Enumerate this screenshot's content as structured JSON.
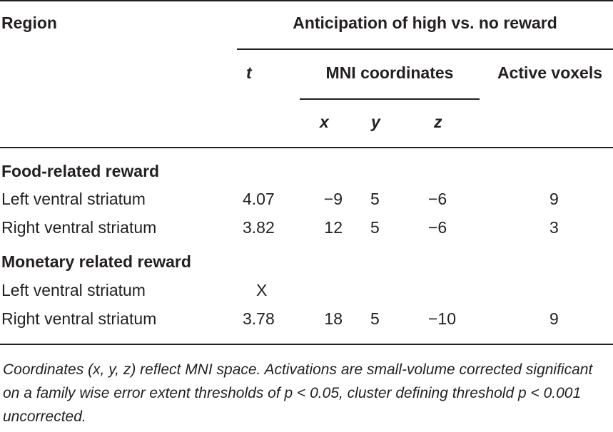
{
  "table": {
    "header": {
      "region": "Region",
      "group": "Anticipation of high vs. no reward",
      "t": "t",
      "mni": "MNI coordinates",
      "active_voxels": "Active voxels",
      "x": "x",
      "y": "y",
      "z": "z"
    },
    "sections": [
      {
        "title": "Food-related reward",
        "rows": [
          {
            "region": "Left ventral striatum",
            "t": "4.07",
            "x": "−9",
            "y": "5",
            "z": "−6",
            "voxels": "9"
          },
          {
            "region": "Right ventral striatum",
            "t": "3.82",
            "x": "12",
            "y": "5",
            "z": "−6",
            "voxels": "3"
          }
        ]
      },
      {
        "title": "Monetary related reward",
        "rows": [
          {
            "region": "Left ventral striatum",
            "t": "X",
            "x": "",
            "y": "",
            "z": "",
            "voxels": ""
          },
          {
            "region": "Right ventral striatum",
            "t": "3.78",
            "x": "18",
            "y": "5",
            "z": "−10",
            "voxels": "9"
          }
        ]
      }
    ],
    "footnote": "Coordinates (x, y, z) reflect MNI space. Activations are small-volume corrected significant on a family wise error extent thresholds of p < 0.05, cluster defining threshold p < 0.001 uncorrected."
  }
}
